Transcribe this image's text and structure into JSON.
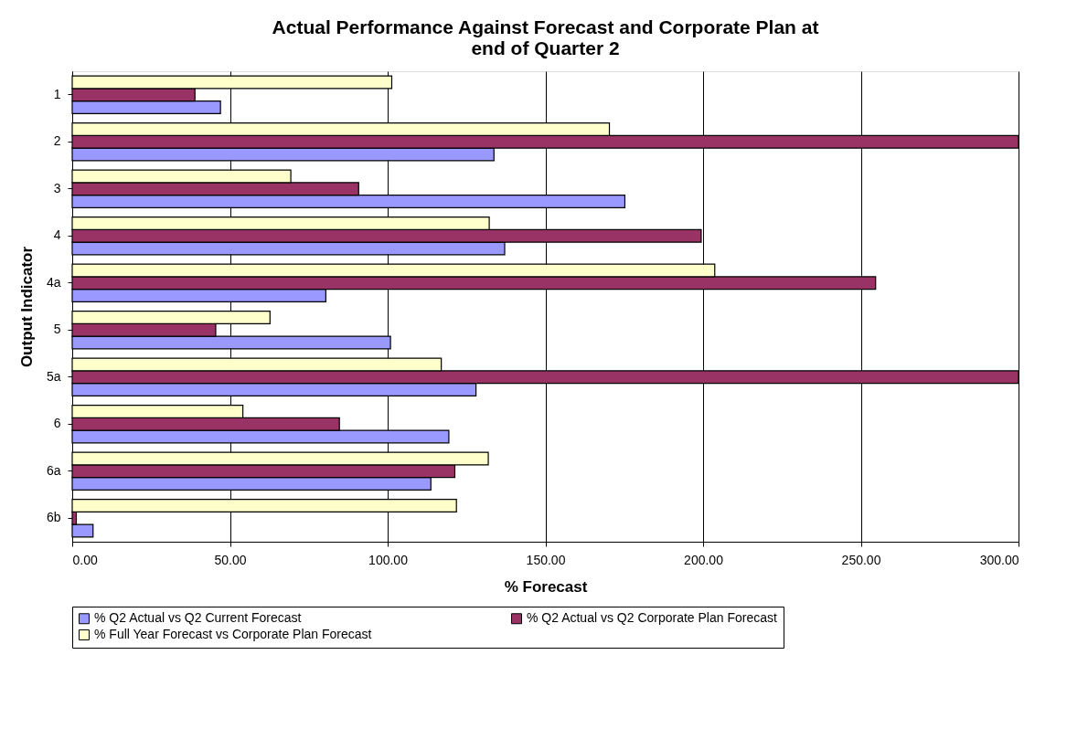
{
  "chart_data": {
    "type": "bar",
    "orientation": "horizontal",
    "title": [
      "Actual Performance Against Forecast and Corporate Plan at",
      "end of Quarter 2"
    ],
    "xlabel": "% Forecast",
    "ylabel": "Output Indicator",
    "categories": [
      "1",
      "2",
      "3",
      "4",
      "4a",
      "5",
      "5a",
      "6",
      "6a",
      "6b"
    ],
    "series": [
      {
        "name": "% Q2 Actual vs Q2 Current Forecast",
        "color": "#9999ff",
        "values": [
          47.0,
          133.7,
          175.2,
          137.1,
          80.4,
          100.9,
          128.0,
          119.4,
          113.7,
          6.6
        ]
      },
      {
        "name": "% Q2 Actual vs Q2 Corporate Plan Forecast",
        "color": "#993366",
        "values": [
          38.9,
          300,
          90.8,
          199.4,
          254.7,
          45.5,
          300,
          84.7,
          121.3,
          1.3
        ]
      },
      {
        "name": "% Full Year Forecast vs Corporate Plan Forecast",
        "color": "#ffffcc",
        "values": [
          101.3,
          170.3,
          69.3,
          132.2,
          203.7,
          62.7,
          117.0,
          54.1,
          131.9,
          121.8
        ]
      }
    ],
    "xlim": [
      0,
      300
    ],
    "xticks": [
      {
        "value": 0,
        "label": "0.00"
      },
      {
        "value": 50,
        "label": "50.00"
      },
      {
        "value": 100,
        "label": "100.00"
      },
      {
        "value": 150,
        "label": "150.00"
      },
      {
        "value": 200,
        "label": "200.00"
      },
      {
        "value": 250,
        "label": "250.00"
      },
      {
        "value": 300,
        "label": "300.00"
      }
    ],
    "grid": "x",
    "legend": "bottom"
  }
}
